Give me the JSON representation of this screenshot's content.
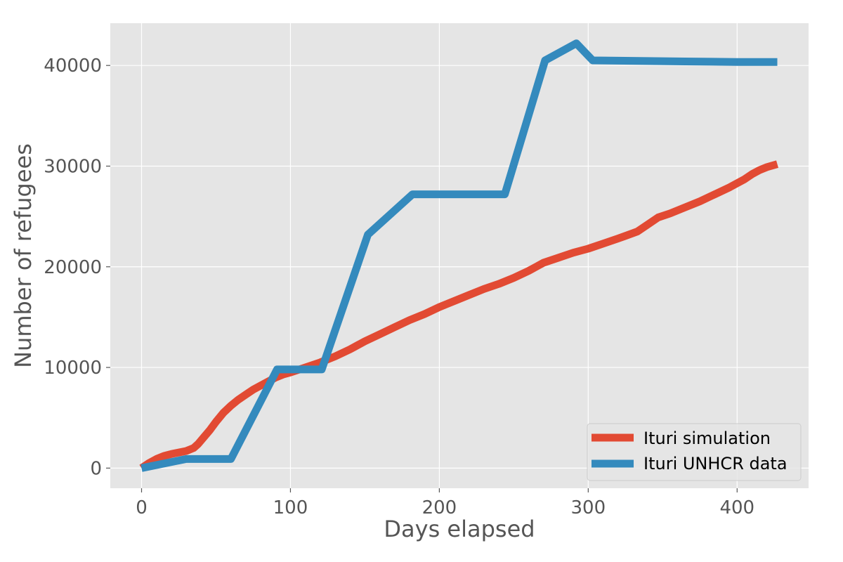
{
  "chart_data": {
    "type": "line",
    "xlabel": "Days elapsed",
    "ylabel": "Number of refugees",
    "xlim": [
      -21,
      448
    ],
    "ylim": [
      -2000,
      44200
    ],
    "x_ticks": [
      0,
      100,
      200,
      300,
      400
    ],
    "x_tick_labels": [
      "0",
      "100",
      "200",
      "300",
      "400"
    ],
    "y_ticks": [
      0,
      10000,
      20000,
      30000,
      40000
    ],
    "y_tick_labels": [
      "0",
      "10000",
      "20000",
      "30000",
      "40000"
    ],
    "grid": true,
    "legend_position": "lower-right",
    "background": "#e5e5e5",
    "series": [
      {
        "name": "Ituri simulation",
        "color": "#e24a33",
        "x": [
          0,
          5,
          10,
          15,
          20,
          25,
          30,
          35,
          38,
          42,
          46,
          50,
          55,
          60,
          65,
          70,
          75,
          80,
          85,
          90,
          95,
          100,
          110,
          120,
          130,
          140,
          150,
          160,
          170,
          180,
          190,
          200,
          210,
          220,
          230,
          240,
          250,
          260,
          270,
          280,
          290,
          300,
          310,
          320,
          333,
          340,
          347,
          355,
          365,
          375,
          385,
          395,
          400,
          405,
          410,
          415,
          420,
          427
        ],
        "y": [
          0,
          500,
          900,
          1200,
          1400,
          1550,
          1700,
          2000,
          2400,
          3100,
          3800,
          4600,
          5500,
          6200,
          6800,
          7300,
          7800,
          8200,
          8600,
          9000,
          9300,
          9500,
          10000,
          10500,
          11100,
          11800,
          12600,
          13300,
          14000,
          14700,
          15300,
          16000,
          16600,
          17200,
          17800,
          18300,
          18900,
          19600,
          20400,
          20900,
          21400,
          21800,
          22300,
          22800,
          23500,
          24200,
          24900,
          25300,
          25900,
          26500,
          27200,
          27900,
          28300,
          28700,
          29200,
          29600,
          29900,
          30200
        ]
      },
      {
        "name": "Ituri UNHCR data",
        "color": "#348abd",
        "x": [
          0,
          30,
          60,
          91,
          121,
          152,
          182,
          244,
          271,
          292,
          303,
          335,
          365,
          400,
          427
        ],
        "y": [
          0,
          900,
          900,
          9800,
          9800,
          23200,
          27200,
          27200,
          40500,
          42200,
          40500,
          40450,
          40400,
          40350,
          40350
        ]
      }
    ]
  }
}
